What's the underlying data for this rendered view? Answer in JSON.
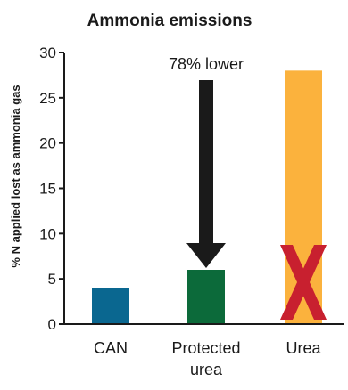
{
  "chart_data": {
    "type": "bar",
    "title": "Ammonia emissions",
    "ylabel": "% N applied lost as ammonia gas",
    "xlabel": "",
    "ylim": [
      0,
      30
    ],
    "yticks": [
      0,
      5,
      10,
      15,
      20,
      25,
      30
    ],
    "categories": [
      "CAN",
      "Protected urea",
      "Urea"
    ],
    "category_lines": [
      [
        "CAN"
      ],
      [
        "Protected",
        "urea"
      ],
      [
        "Urea"
      ]
    ],
    "values": [
      4,
      6,
      28
    ],
    "colors": [
      "#0a6790",
      "#0c6a3a",
      "#fbb23d"
    ],
    "grid": false,
    "annotations": [
      {
        "text": "78% lower",
        "target_category": "Protected urea",
        "type": "arrow",
        "color": "#1a1a1a"
      },
      {
        "text": "",
        "target_category": "Urea",
        "type": "cross-mark",
        "color": "#c8202f"
      }
    ]
  }
}
